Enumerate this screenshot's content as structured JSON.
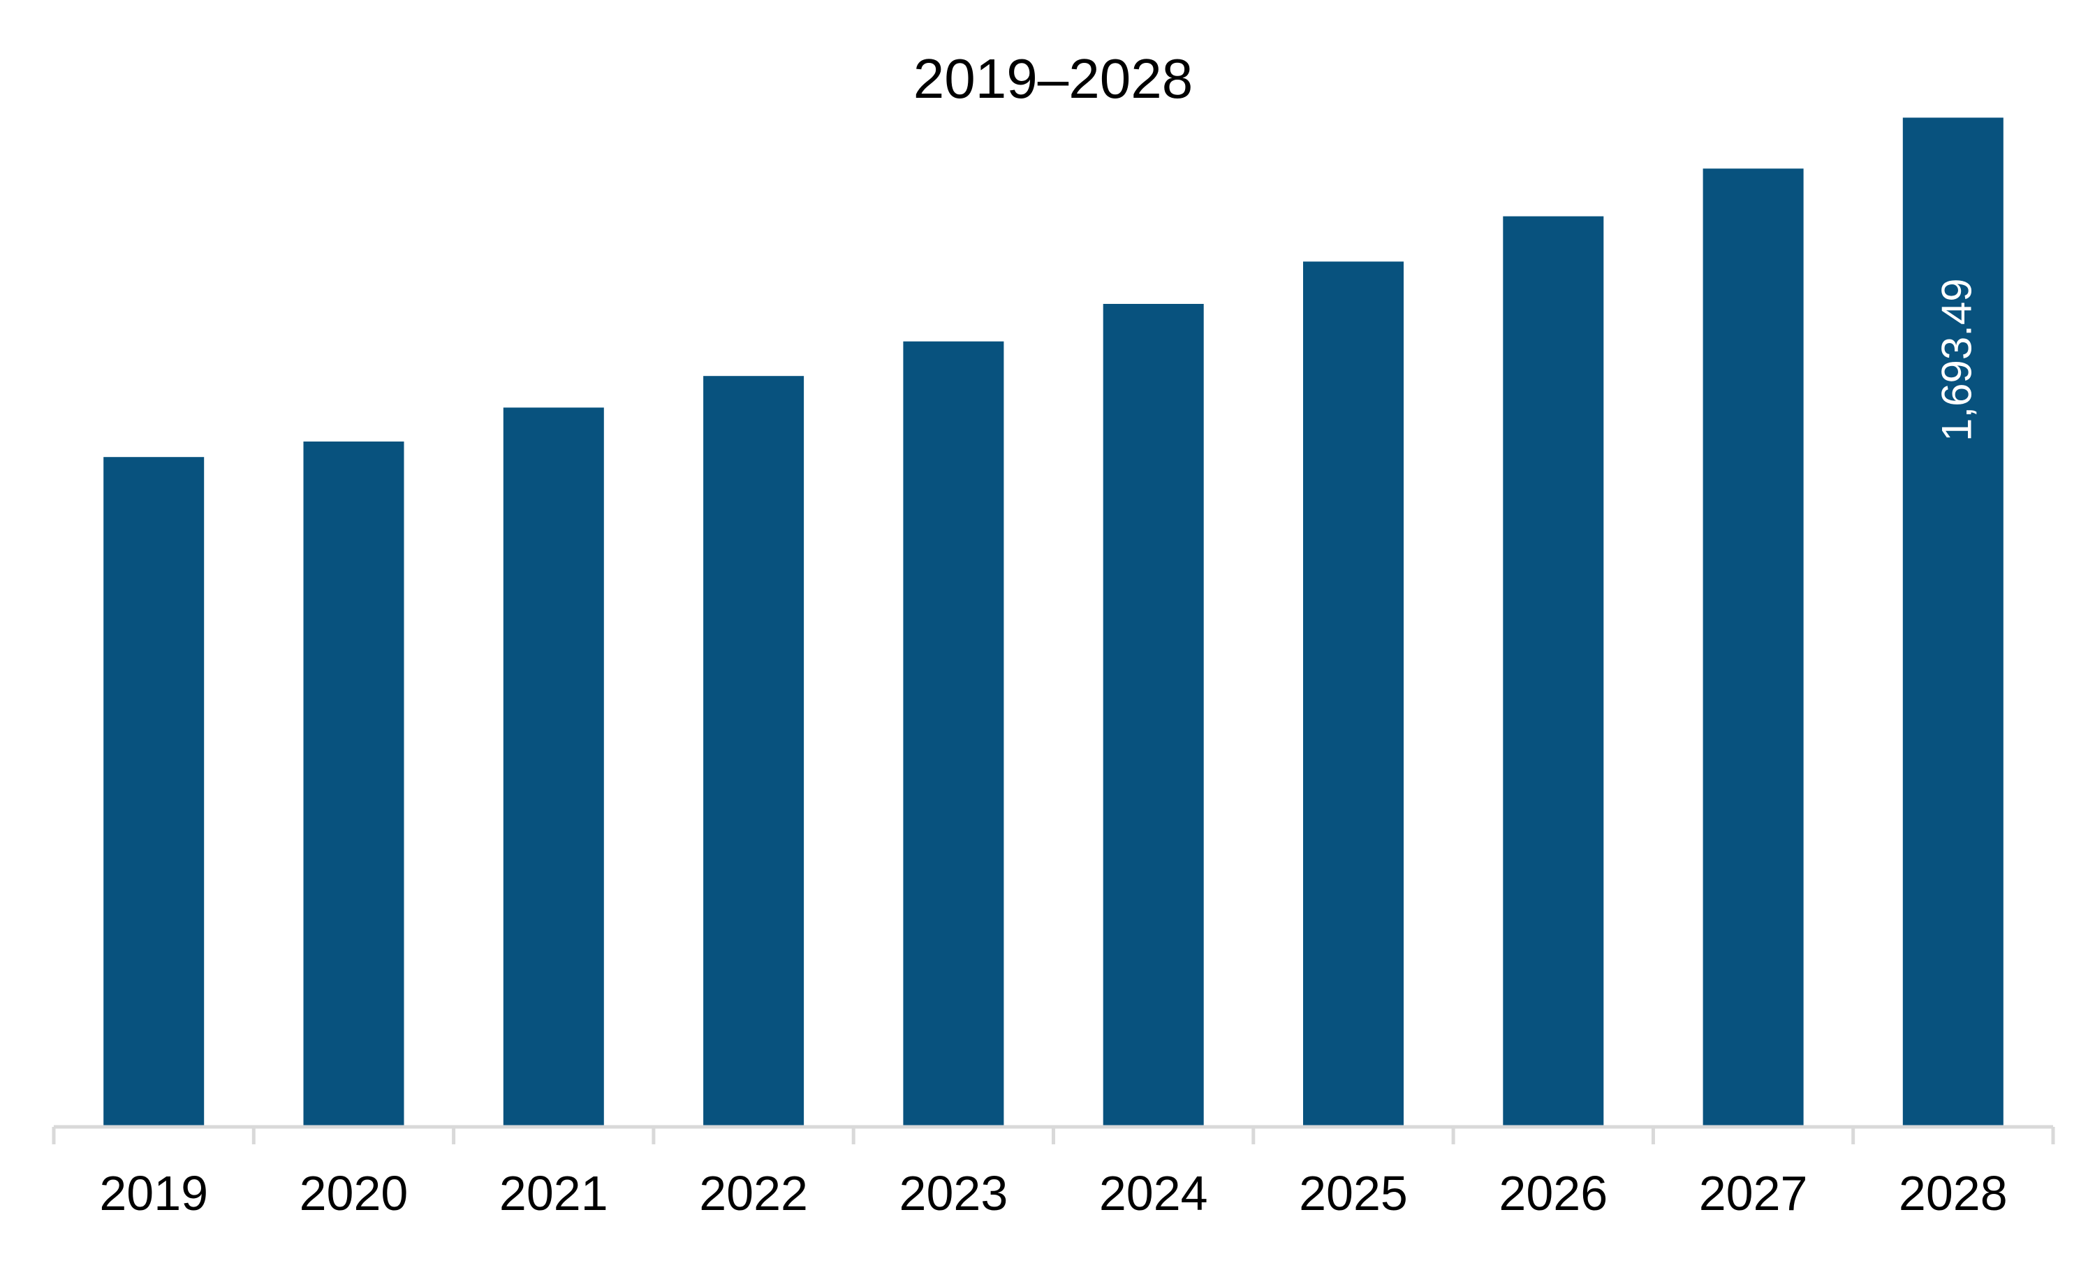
{
  "chart_data": {
    "type": "bar",
    "title": "2019–2028",
    "categories": [
      "2019",
      "2020",
      "2021",
      "2022",
      "2023",
      "2024",
      "2025",
      "2026",
      "2027",
      "2028"
    ],
    "values": [
      1124,
      1150,
      1207,
      1260,
      1318,
      1381,
      1452,
      1528,
      1608,
      1693.49
    ],
    "data_labels": [
      {
        "category": "2028",
        "text": "1,693.49"
      }
    ],
    "xlabel": "",
    "ylabel": "",
    "ylim": [
      0,
      1776
    ],
    "grid": false,
    "legend": "none",
    "colors": {
      "bar": "#08527E",
      "axis": "#D9D9D9",
      "text": "#000000",
      "data_label": "#FFFFFF"
    }
  }
}
